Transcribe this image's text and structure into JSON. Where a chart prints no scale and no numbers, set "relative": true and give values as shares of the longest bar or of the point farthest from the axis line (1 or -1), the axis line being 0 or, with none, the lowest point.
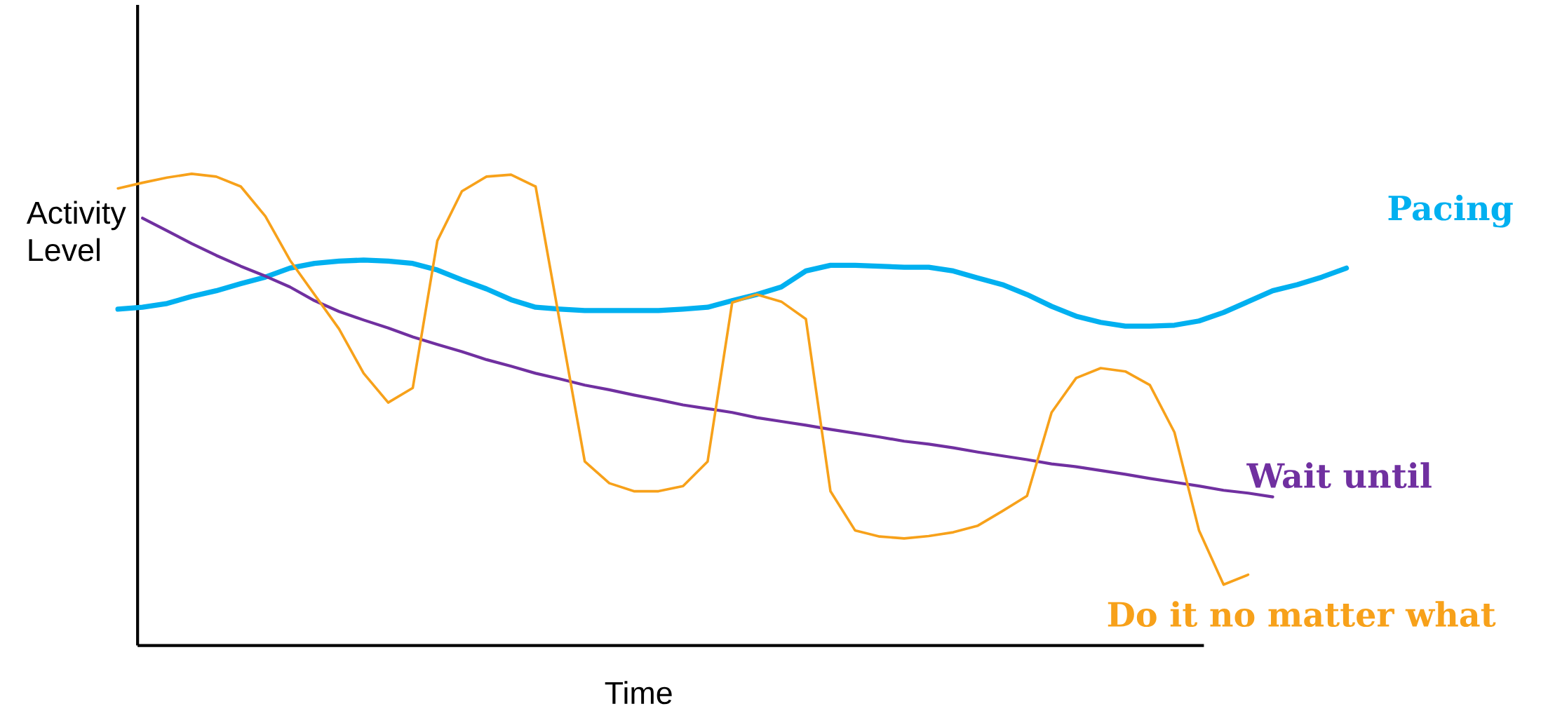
{
  "chart_data": {
    "type": "line",
    "relative": true,
    "xlabel": "Time",
    "ylabel": "Activity Level",
    "categories": [
      null,
      null,
      null,
      null,
      null,
      null,
      null,
      null,
      null,
      null,
      null,
      null,
      null,
      null,
      null,
      null,
      null,
      null,
      null,
      null,
      null,
      null,
      null,
      null,
      null,
      null,
      null,
      null,
      null,
      null,
      null,
      null,
      null,
      null,
      null,
      null,
      null,
      null,
      null,
      null,
      null,
      null,
      null,
      null,
      null,
      null,
      null,
      null,
      null,
      null,
      null
    ],
    "series": [
      {
        "name": "Pacing",
        "color": "#00b0f0",
        "values": [
          0.713,
          0.717,
          0.725,
          0.74,
          0.752,
          0.767,
          0.781,
          0.8,
          0.81,
          0.815,
          0.817,
          0.815,
          0.81,
          0.796,
          0.775,
          0.756,
          0.733,
          0.717,
          0.713,
          0.71,
          0.71,
          0.71,
          0.71,
          0.713,
          0.717,
          0.731,
          0.744,
          0.76,
          0.794,
          0.806,
          0.806,
          0.804,
          0.802,
          0.802,
          0.794,
          0.779,
          0.765,
          0.744,
          0.719,
          0.698,
          0.685,
          0.677,
          0.677,
          0.679,
          0.688,
          0.706,
          0.729,
          0.752,
          0.765,
          0.781,
          0.8
        ]
      },
      {
        "name": "Wait until",
        "color": "#7030a0",
        "values": [
          null,
          0.906,
          0.879,
          0.852,
          0.827,
          0.804,
          0.783,
          0.76,
          0.731,
          0.708,
          0.69,
          0.673,
          0.654,
          0.638,
          0.623,
          0.606,
          0.592,
          0.577,
          0.565,
          0.552,
          0.542,
          0.531,
          0.521,
          0.51,
          0.502,
          0.494,
          0.483,
          0.475,
          0.467,
          0.458,
          0.45,
          0.442,
          0.433,
          0.427,
          0.419,
          0.41,
          0.402,
          0.394,
          0.385,
          0.379,
          0.371,
          0.363,
          0.354,
          0.346,
          0.338,
          0.329,
          0.323,
          0.315,
          null,
          null,
          null
        ]
      },
      {
        "name": "Do it no matter what",
        "color": "#f7a11a",
        "values": [
          0.969,
          0.981,
          0.992,
          1,
          0.994,
          0.973,
          0.91,
          0.817,
          0.744,
          0.671,
          0.577,
          0.515,
          0.546,
          0.858,
          0.963,
          0.994,
          0.998,
          0.973,
          0.681,
          0.39,
          0.344,
          0.327,
          0.327,
          0.338,
          0.39,
          0.727,
          0.744,
          0.729,
          0.692,
          0.327,
          0.244,
          0.231,
          0.227,
          0.232,
          0.24,
          0.254,
          0.285,
          0.317,
          0.494,
          0.567,
          0.588,
          0.581,
          0.552,
          0.452,
          0.244,
          0.129,
          0.15,
          null,
          null,
          null,
          null
        ]
      }
    ]
  }
}
